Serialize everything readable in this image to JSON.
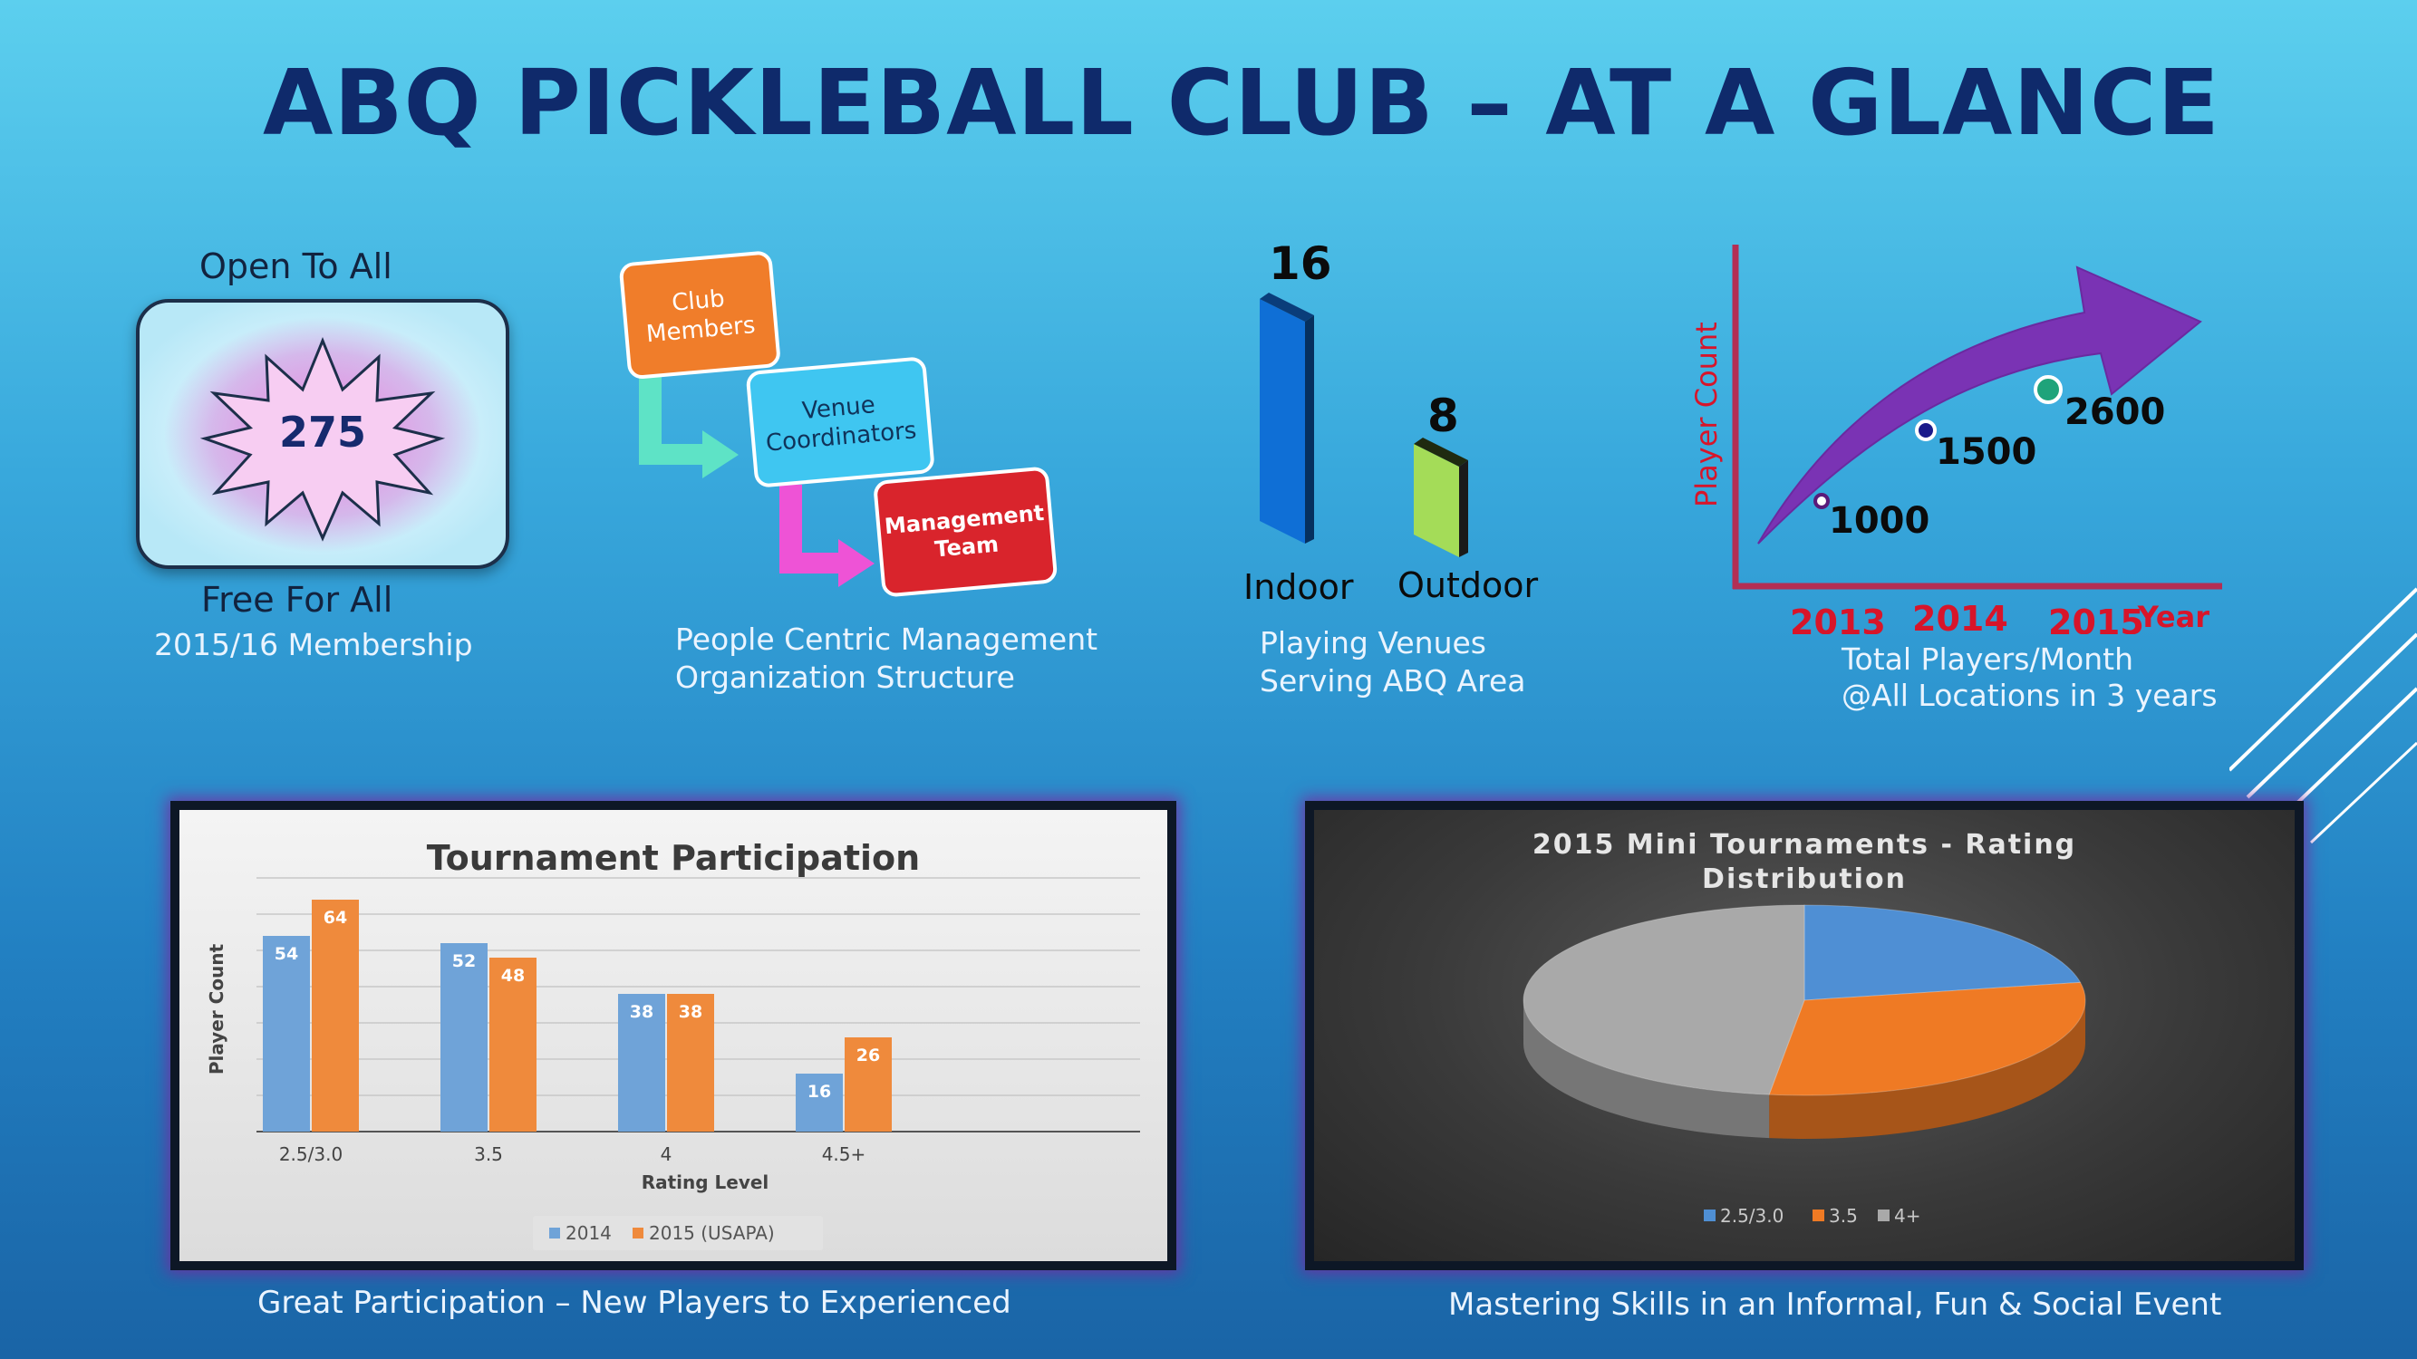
{
  "title": "ABQ PICKLEBALL CLUB – AT A GLANCE",
  "membership": {
    "top_label": "Open To All",
    "count": "275",
    "bottom_label": "Free For All",
    "caption": "2015/16 Membership"
  },
  "org": {
    "box1": [
      "Club",
      "Members"
    ],
    "box2": [
      "Venue",
      "Coordinators"
    ],
    "box3": [
      "Management",
      "Team"
    ],
    "caption1": "People Centric Management",
    "caption2": "Organization Structure"
  },
  "venues": {
    "indoor_value": "16",
    "indoor_label": "Indoor",
    "outdoor_value": "8",
    "outdoor_label": "Outdoor",
    "caption1": "Playing Venues",
    "caption2": "Serving ABQ Area"
  },
  "growth": {
    "ylabel": "Player Count",
    "xlabel": "Year",
    "points": [
      "1000",
      "1500",
      "2600"
    ],
    "years": [
      "2013",
      "2014",
      "2015"
    ],
    "caption1": "Total Players/Month",
    "caption2": "@All Locations in 3 years"
  },
  "chart_data": [
    {
      "type": "bar",
      "title": "Tournament Participation",
      "xlabel": "Rating Level",
      "ylabel": "Player Count",
      "categories": [
        "2.5/3.0",
        "3.5",
        "4",
        "4.5+"
      ],
      "series": [
        {
          "name": "2014",
          "values": [
            54,
            52,
            38,
            16
          ],
          "color": "#6fa3d8"
        },
        {
          "name": "2015 (USAPA)",
          "values": [
            64,
            48,
            38,
            26
          ],
          "color": "#ef8a3c"
        }
      ],
      "ylim": [
        0,
        70
      ],
      "grid": true,
      "legend": "bottom"
    },
    {
      "type": "pie",
      "title": "2015 Mini Tournaments - Rating Distribution",
      "title_line1": "2015 Mini Tournaments - Rating",
      "title_line2": "Distribution",
      "labels": [
        "2.5/3.0",
        "3.5",
        "4+"
      ],
      "values": [
        22,
        30,
        48
      ],
      "colors": [
        "#4f8fd4",
        "#ef7a24",
        "#a9a9a9"
      ],
      "legend": "bottom"
    }
  ],
  "captions": {
    "left": "Great Participation – New Players to Experienced",
    "right": "Mastering Skills in an Informal, Fun & Social Event"
  }
}
